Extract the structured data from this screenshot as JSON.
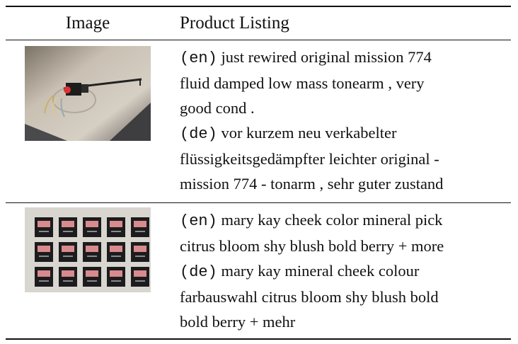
{
  "table": {
    "headers": {
      "image": "Image",
      "listing": "Product Listing"
    },
    "rows": [
      {
        "image_subject": "tonearm",
        "en_tag": "(en)",
        "en_lines": [
          "just rewired original mission 774",
          "fluid damped low mass tonearm , very",
          "good cond ."
        ],
        "de_tag": "(de)",
        "de_lines": [
          "vor kurzem neu verkabelter",
          "flüssigkeitsgedämpfter leichter original -",
          "mission 774 - tonarm , sehr guter zustand"
        ]
      },
      {
        "image_subject": "blush-palettes",
        "en_tag": "(en)",
        "en_lines": [
          "mary kay cheek color mineral pick",
          "citrus bloom shy blush bold berry + more"
        ],
        "de_tag": "(de)",
        "de_lines": [
          "mary kay mineral cheek colour",
          "farbauswahl citrus bloom shy blush bold",
          "bold berry + mehr"
        ]
      }
    ]
  },
  "colors": {
    "rule": "#111111",
    "text": "#111111",
    "table_surface": "#c9c3b8",
    "blush_case": "#1c1c1e",
    "blush_pan": "#d98a8c"
  }
}
